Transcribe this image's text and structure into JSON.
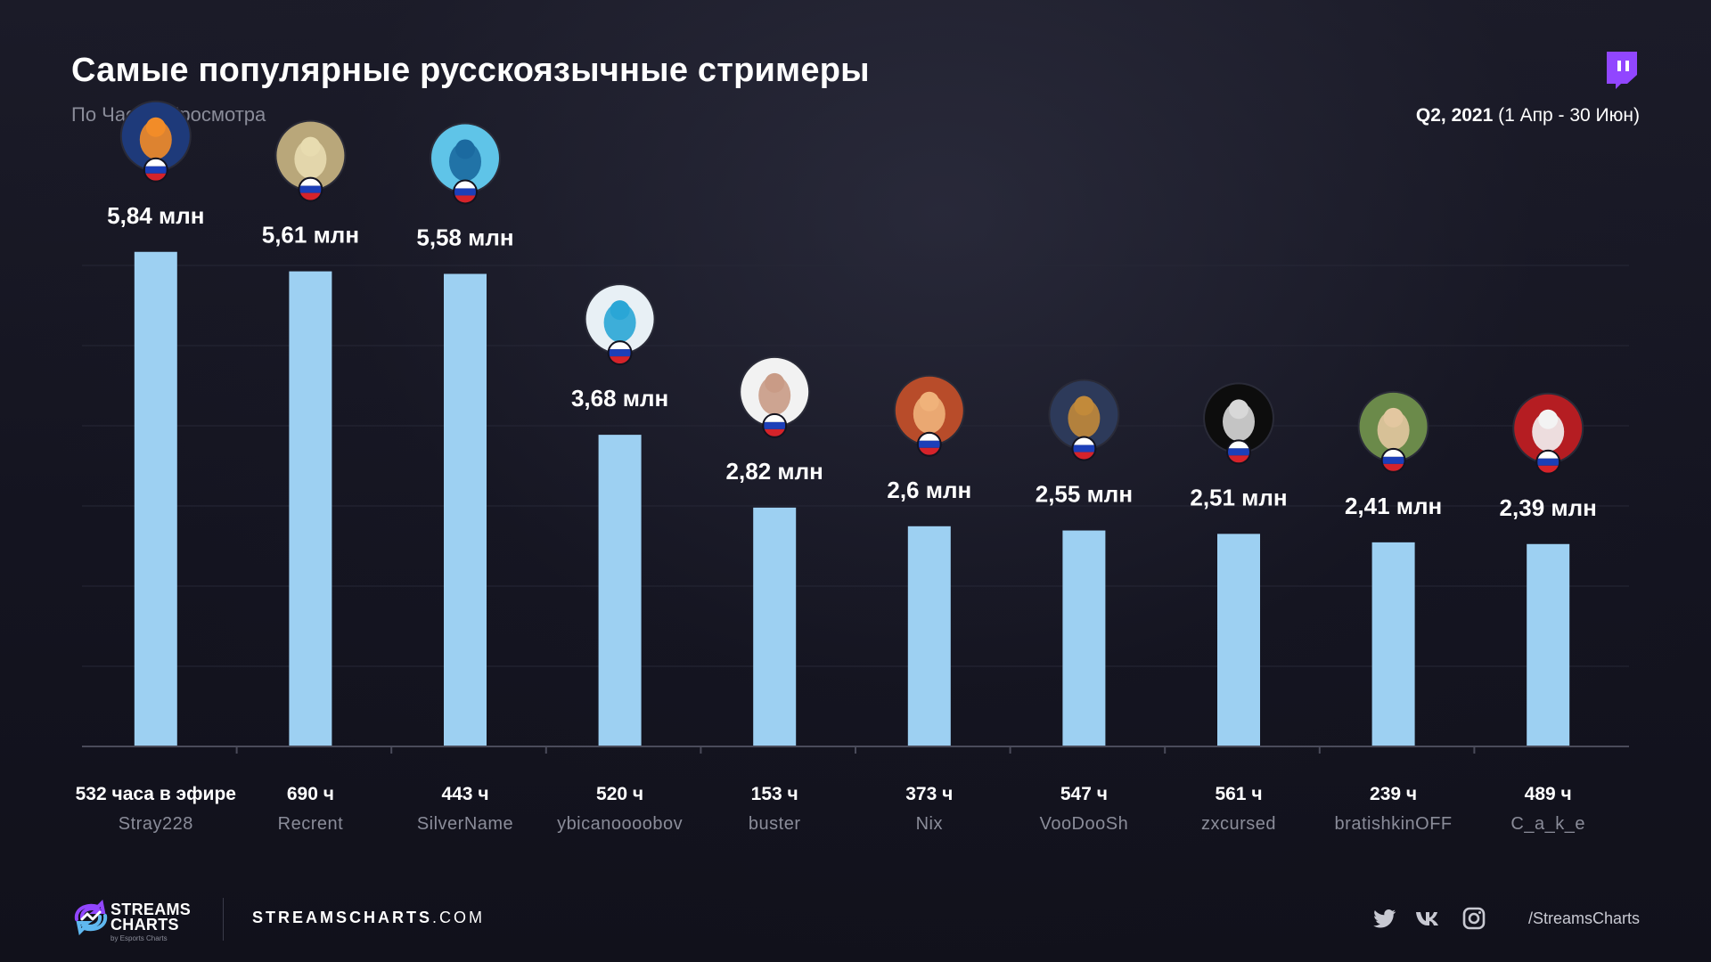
{
  "header": {
    "title": "Самые популярные русскоязычные стримеры",
    "subtitle": "По Часам Просмотра",
    "period_bold": "Q2, 2021",
    "period_rest": " (1 Апр - 30 Июн)"
  },
  "colors": {
    "bar": "#9dd0f2",
    "background": "#13131f",
    "twitch": "#9146ff",
    "muted_text": "#8a8c99",
    "flag_white": "#ffffff",
    "flag_blue": "#1c3fb8",
    "flag_red": "#d5232a"
  },
  "chart_data": {
    "type": "bar",
    "unit": "млн",
    "categories": [
      "Stray228",
      "Recrent",
      "SilverName",
      "ybicanoooobov",
      "buster",
      "Nix",
      "VooDooSh",
      "zxcursed",
      "bratishkinOFF",
      "C_a_k_e"
    ],
    "values": [
      5.84,
      5.61,
      5.58,
      3.68,
      2.82,
      2.6,
      2.55,
      2.51,
      2.41,
      2.39
    ],
    "value_labels": [
      "5,84 млн",
      "5,61 млн",
      "5,58 млн",
      "3,68 млн",
      "2,82 млн",
      "2,6 млн",
      "2,55 млн",
      "2,51 млн",
      "2,41 млн",
      "2,39 млн"
    ],
    "hours_labels": [
      "532 часа в эфире",
      "690 ч",
      "443 ч",
      "520 ч",
      "153 ч",
      "373 ч",
      "547 ч",
      "561 ч",
      "239 ч",
      "489 ч"
    ],
    "avatar_icons": [
      "avatar-fire-icon",
      "avatar-statue-icon",
      "avatar-blue-creature-icon",
      "avatar-che-icon",
      "avatar-bald-glasses-icon",
      "avatar-redhead-icon",
      "avatar-villain-icon",
      "avatar-monochrome-icon",
      "avatar-young-man-icon",
      "avatar-wolf-icon"
    ],
    "flag": "russia-flag-icon",
    "ylim": [
      0,
      6.5
    ],
    "grid": true,
    "legend": "none"
  },
  "footer": {
    "brand_line1": "STREAMS",
    "brand_line2": "CHARTS",
    "brand_tag": "by Esports Charts",
    "site_bold": "STREAMSCHARTS",
    "site_rest": ".COM",
    "social_handle": "/StreamsCharts",
    "social_icons": [
      "twitter-icon",
      "vk-icon",
      "instagram-icon"
    ]
  }
}
